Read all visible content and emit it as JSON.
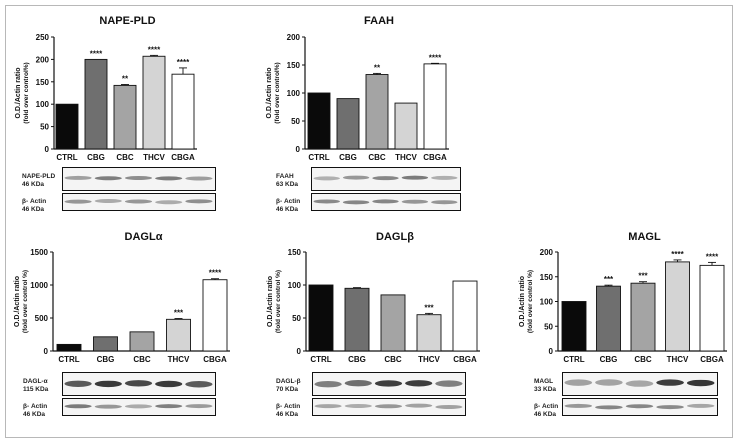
{
  "colors": {
    "CTRL": "#0a0a0a",
    "CBG": "#6f6f6f",
    "CBC": "#a4a4a4",
    "THCV": "#d4d4d4",
    "CBGA": "#ffffff"
  },
  "chart_data": [
    {
      "type": "bar",
      "title": "NAPE-PLD",
      "ylabel": "O.D./Actin ratio",
      "ylabel2": "(fold over control%)",
      "categories": [
        "CTRL",
        "CBG",
        "CBC",
        "THCV",
        "CBGA"
      ],
      "values": [
        100,
        200,
        142,
        207,
        167
      ],
      "errors": [
        0,
        0,
        2,
        2,
        14
      ],
      "significance": [
        "",
        "****",
        "**",
        "****",
        "****"
      ],
      "ylim": [
        0,
        250
      ],
      "yticks": [
        0,
        50,
        100,
        150,
        200,
        250
      ],
      "blot": {
        "target_label": "NAPE-PLD",
        "target_kda": "46 KDa",
        "actin_label": "β- Actin",
        "actin_kda": "46 KDa"
      }
    },
    {
      "type": "bar",
      "title": "FAAH",
      "ylabel": "O.D./Actin ratio",
      "ylabel2": "(fold over control%)",
      "categories": [
        "CTRL",
        "CBG",
        "CBC",
        "THCV",
        "CBGA"
      ],
      "values": [
        100,
        90,
        133,
        82,
        152
      ],
      "errors": [
        0,
        0,
        2,
        0,
        1
      ],
      "significance": [
        "",
        "",
        "**",
        "",
        "****"
      ],
      "ylim": [
        0,
        200
      ],
      "yticks": [
        0,
        50,
        100,
        150,
        200
      ],
      "blot": {
        "target_label": "FAAH",
        "target_kda": "63 KDa",
        "actin_label": "β- Actin",
        "actin_kda": "46 KDa"
      }
    },
    {
      "type": "bar",
      "title": "DAGLα",
      "ylabel": "O.D./Actin ratio",
      "ylabel2": "(fold over control %)",
      "categories": [
        "CTRL",
        "CBG",
        "CBC",
        "THCV",
        "CBGA"
      ],
      "values": [
        100,
        215,
        290,
        480,
        1080
      ],
      "errors": [
        0,
        0,
        0,
        12,
        15
      ],
      "significance": [
        "",
        "",
        "",
        "***",
        "****"
      ],
      "ylim": [
        0,
        1500
      ],
      "yticks": [
        0,
        500,
        1000,
        1500
      ],
      "blot": {
        "target_label": "DAGL-α",
        "target_kda": "115 KDa",
        "actin_label": "β- Actin",
        "actin_kda": "46 KDa"
      }
    },
    {
      "type": "bar",
      "title": "DAGLβ",
      "ylabel": "O.D./Actin ratio",
      "ylabel2": "(fold over control %)",
      "categories": [
        "CTRL",
        "CBG",
        "CBC",
        "THCV",
        "CBGA"
      ],
      "values": [
        100,
        95,
        85,
        55,
        106
      ],
      "errors": [
        0,
        1,
        0,
        2,
        0
      ],
      "significance": [
        "",
        "",
        "",
        "***",
        ""
      ],
      "ylim": [
        0,
        150
      ],
      "yticks": [
        0,
        50,
        100,
        150
      ],
      "blot": {
        "target_label": "DAGL-β",
        "target_kda": "70 KDa",
        "actin_label": "β- Actin",
        "actin_kda": "46 KDa"
      }
    },
    {
      "type": "bar",
      "title": "MAGL",
      "ylabel": "O.D./Actin ratio",
      "ylabel2": "(fold over control %)",
      "categories": [
        "CTRL",
        "CBG",
        "CBC",
        "THCV",
        "CBGA"
      ],
      "values": [
        100,
        131,
        137,
        180,
        173
      ],
      "errors": [
        0,
        2,
        3,
        4,
        6
      ],
      "significance": [
        "",
        "***",
        "***",
        "****",
        "****"
      ],
      "ylim": [
        0,
        200
      ],
      "yticks": [
        0,
        50,
        100,
        150,
        200
      ],
      "blot": {
        "target_label": "MAGL",
        "target_kda": "33 KDa",
        "actin_label": "β- Actin",
        "actin_kda": "46 KDa"
      }
    }
  ]
}
